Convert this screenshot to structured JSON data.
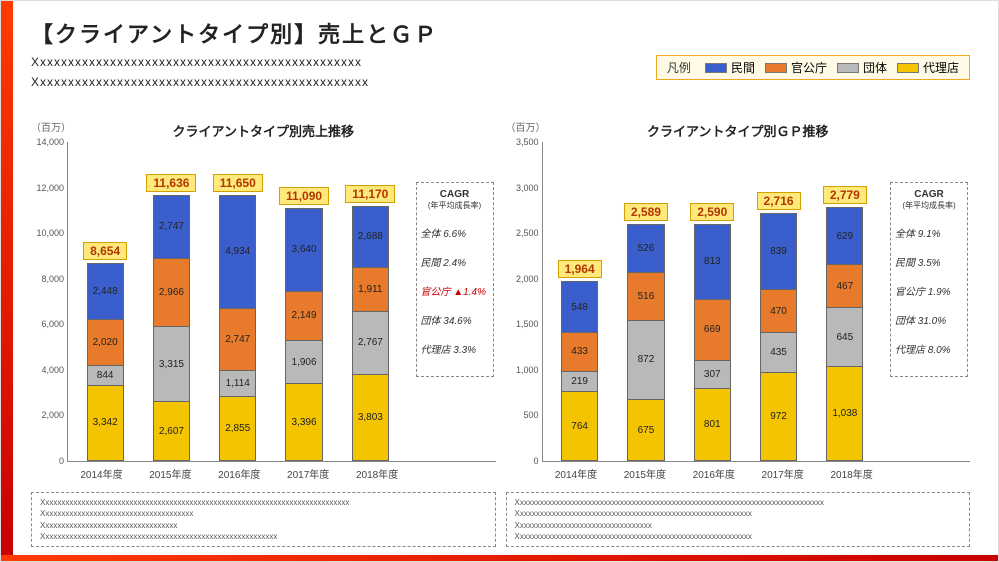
{
  "header": {
    "title": "【クライアントタイプ別】売上とＧＰ",
    "sub1": "Xxxxxxxxxxxxxxxxxxxxxxxxxxxxxxxxxxxxxxxxxxxxxxx",
    "sub2": "Xxxxxxxxxxxxxxxxxxxxxxxxxxxxxxxxxxxxxxxxxxxxxxxx"
  },
  "legend": {
    "label": "凡例",
    "items": [
      {
        "name": "民間",
        "color": "#3a5fcd"
      },
      {
        "name": "官公庁",
        "color": "#e87b2b"
      },
      {
        "name": "団体",
        "color": "#b9b9b9"
      },
      {
        "name": "代理店",
        "color": "#f5c400"
      }
    ]
  },
  "categories": [
    "2014年度",
    "2015年度",
    "2016年度",
    "2017年度",
    "2018年度"
  ],
  "seriesOrder": [
    "代理店",
    "団体",
    "官公庁",
    "民間"
  ],
  "seriesColors": {
    "代理店": "#f5c400",
    "団体": "#b9b9b9",
    "官公庁": "#e87b2b",
    "民間": "#3a5fcd"
  },
  "charts": [
    {
      "title": "クライアントタイプ別売上推移",
      "unit": "（百万）",
      "ymax": 14000,
      "ystep": 2000,
      "totals": [
        "8,654",
        "11,636",
        "11,650",
        "11,090",
        "11,170"
      ],
      "data": {
        "代理店": [
          3342,
          2607,
          2855,
          3396,
          3803
        ],
        "団体": [
          844,
          3315,
          1114,
          1906,
          2767
        ],
        "官公庁": [
          2020,
          2966,
          2747,
          2149,
          1911
        ],
        "民間": [
          2448,
          2747,
          4934,
          3640,
          2688
        ]
      },
      "labels": {
        "代理店": [
          "3,342",
          "2,607",
          "2,855",
          "3,396",
          "3,803"
        ],
        "団体": [
          "844",
          "3,315",
          "1,114",
          "1,906",
          "2,767"
        ],
        "官公庁": [
          "2,020",
          "2,966",
          "2,747",
          "2,149",
          "1,911"
        ],
        "民間": [
          "2,448",
          "2,747",
          "4,934",
          "3,640",
          "2,688"
        ]
      },
      "cagr": {
        "head": "CAGR",
        "sub": "(年平均成長率)",
        "rows": [
          {
            "label": "全体 6.6%",
            "neg": false
          },
          {
            "label": "民間 2.4%",
            "neg": false
          },
          {
            "label": "官公庁 ▲1.4%",
            "neg": true
          },
          {
            "label": "団体 34.6%",
            "neg": false
          },
          {
            "label": "代理店 3.3%",
            "neg": false
          }
        ]
      }
    },
    {
      "title": "クライアントタイプ別ＧＰ推移",
      "unit": "（百万）",
      "ymax": 3500,
      "ystep": 500,
      "totals": [
        "1,964",
        "2,589",
        "2,590",
        "2,716",
        "2,779"
      ],
      "data": {
        "代理店": [
          764,
          675,
          801,
          972,
          1038
        ],
        "団体": [
          219,
          872,
          307,
          435,
          645
        ],
        "官公庁": [
          433,
          516,
          669,
          470,
          467
        ],
        "民間": [
          548,
          526,
          813,
          839,
          629
        ]
      },
      "labels": {
        "代理店": [
          "764",
          "675",
          "801",
          "972",
          "1,038"
        ],
        "団体": [
          "219",
          "872",
          "307",
          "435",
          "645"
        ],
        "官公庁": [
          "433",
          "516",
          "669",
          "470",
          "467"
        ],
        "民間": [
          "548",
          "526",
          "813",
          "839",
          "629"
        ]
      },
      "cagr": {
        "head": "CAGR",
        "sub": "(年平均成長率)",
        "rows": [
          {
            "label": "全体 9.1%",
            "neg": false
          },
          {
            "label": "民間 3.5%",
            "neg": false
          },
          {
            "label": "官公庁 1.9%",
            "neg": false
          },
          {
            "label": "団体 31.0%",
            "neg": false
          },
          {
            "label": "代理店 8.0%",
            "neg": false
          }
        ]
      }
    }
  ],
  "notes": [
    [
      "Xxxxxxxxxxxxxxxxxxxxxxxxxxxxxxxxxxxxxxxxxxxxxxxxxxxxxxxxxxxxxxxxxxxxxxxxxxxxx",
      "Xxxxxxxxxxxxxxxxxxxxxxxxxxxxxxxxxxxxxx",
      "Xxxxxxxxxxxxxxxxxxxxxxxxxxxxxxxxxx",
      "Xxxxxxxxxxxxxxxxxxxxxxxxxxxxxxxxxxxxxxxxxxxxxxxxxxxxxxxxxxx"
    ],
    [
      "Xxxxxxxxxxxxxxxxxxxxxxxxxxxxxxxxxxxxxxxxxxxxxxxxxxxxxxxxxxxxxxxxxxxxxxxxxxxxx",
      "Xxxxxxxxxxxxxxxxxxxxxxxxxxxxxxxxxxxxxxxxxxxxxxxxxxxxxxxxxxx",
      "Xxxxxxxxxxxxxxxxxxxxxxxxxxxxxxxxxx",
      "Xxxxxxxxxxxxxxxxxxxxxxxxxxxxxxxxxxxxxxxxxxxxxxxxxxxxxxxxxxx"
    ]
  ]
}
